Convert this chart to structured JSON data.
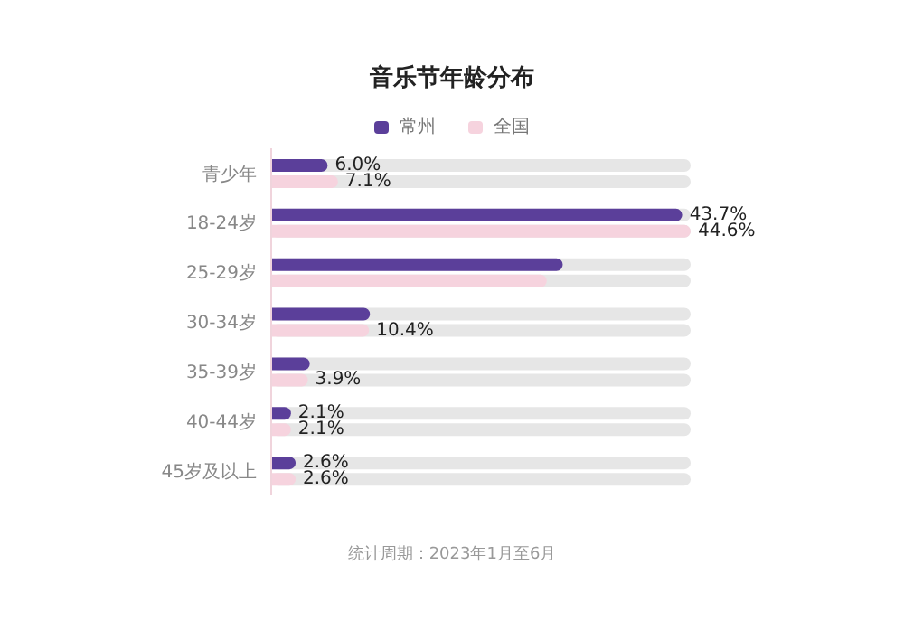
{
  "chart_data": {
    "type": "bar",
    "orientation": "horizontal",
    "title": "音乐节年龄分布",
    "categories": [
      "青少年",
      "18-24岁",
      "25-29岁",
      "30-34岁",
      "35-39岁",
      "40-44岁",
      "45岁及以上"
    ],
    "series": [
      {
        "name": "常州",
        "color": "#5b3f9a",
        "values": [
          6.0,
          43.7,
          31.0,
          10.5,
          4.1,
          2.1,
          2.6
        ],
        "value_labels": [
          "6.0%",
          "43.7%",
          null,
          null,
          null,
          "2.1%",
          "2.6%"
        ]
      },
      {
        "name": "全国",
        "color": "#f6d3de",
        "values": [
          7.1,
          44.6,
          29.3,
          10.4,
          3.9,
          2.1,
          2.6
        ],
        "value_labels": [
          "7.1%",
          "44.6%",
          null,
          "10.4%",
          "3.9%",
          "2.1%",
          "2.6%"
        ]
      }
    ],
    "tick_labels": "y",
    "legend": "top",
    "annotations": [
      "统计周期：2023年1月至6月"
    ]
  }
}
